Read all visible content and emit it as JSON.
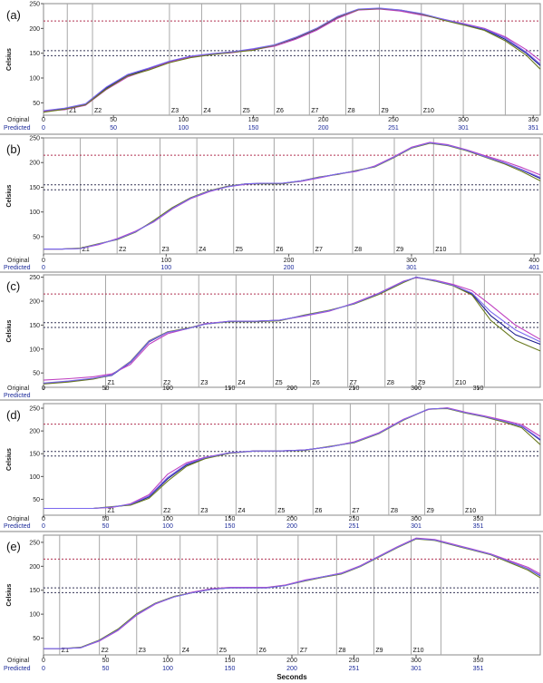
{
  "figure": {
    "xlabel": "Seconds",
    "row_labels": {
      "original": "Original",
      "predicted": "Predicted"
    },
    "colors": {
      "series": [
        "#1a1a8c",
        "#c040c0",
        "#6a7a20",
        "#7b68ee"
      ],
      "upper_ref": "#b03050",
      "lower_ref": "#333355",
      "zone": "#a8a8a8"
    }
  },
  "chart_data": [
    {
      "type": "line",
      "panel_label": "(a)",
      "ylabel": "Celsius",
      "yticks": [
        50,
        100,
        150,
        200,
        250
      ],
      "ylim": [
        25,
        250
      ],
      "xlim": [
        0,
        355
      ],
      "x_original_ticks": [
        0,
        50,
        100,
        150,
        200,
        250,
        300,
        350
      ],
      "x_predicted_ticks": [
        "0",
        "50",
        "100",
        "150",
        "200",
        "251",
        "301",
        "351"
      ],
      "reference_lines": [
        215,
        155,
        145
      ],
      "zones": [
        {
          "label": "Z1",
          "x": 17
        },
        {
          "label": "Z2",
          "x": 35
        },
        {
          "label": "Z3",
          "x": 90
        },
        {
          "label": "Z4",
          "x": 113
        },
        {
          "label": "Z5",
          "x": 141
        },
        {
          "label": "Z6",
          "x": 165
        },
        {
          "label": "Z7",
          "x": 190
        },
        {
          "label": "Z8",
          "x": 216
        },
        {
          "label": "Z9",
          "x": 240
        },
        {
          "label": "Z10",
          "x": 270
        },
        {
          "label": "",
          "x": 300
        },
        {
          "label": "",
          "x": 330
        }
      ],
      "x": [
        0,
        15,
        30,
        45,
        60,
        75,
        90,
        105,
        120,
        135,
        150,
        165,
        180,
        195,
        210,
        225,
        240,
        255,
        270,
        285,
        300,
        315,
        330,
        345,
        355
      ],
      "series": [
        {
          "values": [
            32,
            38,
            47,
            80,
            105,
            118,
            133,
            143,
            148,
            152,
            158,
            166,
            180,
            198,
            222,
            238,
            240,
            236,
            228,
            218,
            208,
            198,
            178,
            150,
            125
          ]
        },
        {
          "values": [
            33,
            36,
            45,
            77,
            102,
            117,
            132,
            142,
            148,
            151,
            157,
            164,
            178,
            196,
            220,
            237,
            239,
            235,
            227,
            219,
            210,
            200,
            183,
            157,
            135
          ]
        },
        {
          "values": [
            31,
            37,
            46,
            78,
            104,
            116,
            131,
            141,
            147,
            152,
            156,
            166,
            181,
            199,
            223,
            238,
            240,
            237,
            229,
            217,
            207,
            196,
            175,
            146,
            118
          ]
        },
        {
          "values": [
            34,
            39,
            48,
            82,
            107,
            120,
            134,
            144,
            149,
            153,
            159,
            167,
            182,
            200,
            224,
            239,
            241,
            237,
            230,
            219,
            209,
            199,
            181,
            152,
            128
          ]
        }
      ]
    },
    {
      "type": "line",
      "panel_label": "(b)",
      "ylabel": "Celsius",
      "yticks": [
        50,
        100,
        150,
        200,
        250
      ],
      "ylim": [
        15,
        250
      ],
      "xlim": [
        0,
        405
      ],
      "x_original_ticks": [
        0,
        100,
        200,
        300,
        400
      ],
      "x_predicted_ticks": [
        "0",
        "100",
        "200",
        "301",
        "401"
      ],
      "reference_lines": [
        215,
        155,
        145
      ],
      "zones": [
        {
          "label": "Z1",
          "x": 30
        },
        {
          "label": "Z2",
          "x": 60
        },
        {
          "label": "Z3",
          "x": 95
        },
        {
          "label": "Z4",
          "x": 125
        },
        {
          "label": "Z5",
          "x": 155
        },
        {
          "label": "Z6",
          "x": 188
        },
        {
          "label": "Z7",
          "x": 220
        },
        {
          "label": "Z8",
          "x": 252
        },
        {
          "label": "Z9",
          "x": 286
        },
        {
          "label": "Z10",
          "x": 318
        },
        {
          "label": "",
          "x": 340
        }
      ],
      "x": [
        0,
        15,
        30,
        45,
        60,
        75,
        90,
        105,
        120,
        135,
        150,
        165,
        180,
        195,
        210,
        225,
        240,
        255,
        270,
        285,
        300,
        315,
        330,
        345,
        360,
        375,
        390,
        405
      ],
      "series": [
        {
          "values": [
            25,
            25,
            26,
            35,
            45,
            60,
            82,
            108,
            128,
            142,
            152,
            157,
            158,
            158,
            163,
            170,
            177,
            183,
            192,
            210,
            230,
            240,
            235,
            225,
            212,
            200,
            185,
            168
          ]
        },
        {
          "values": [
            25,
            25,
            26,
            34,
            46,
            61,
            80,
            106,
            127,
            141,
            151,
            156,
            158,
            158,
            162,
            169,
            177,
            182,
            193,
            211,
            231,
            241,
            236,
            226,
            214,
            203,
            190,
            175
          ]
        },
        {
          "values": [
            25,
            25,
            27,
            36,
            44,
            59,
            83,
            109,
            129,
            143,
            152,
            157,
            157,
            157,
            163,
            171,
            176,
            184,
            191,
            209,
            229,
            239,
            234,
            224,
            211,
            198,
            182,
            163
          ]
        },
        {
          "values": [
            25,
            25,
            26,
            35,
            45,
            60,
            81,
            107,
            128,
            142,
            151,
            157,
            158,
            158,
            163,
            170,
            177,
            183,
            192,
            210,
            230,
            240,
            235,
            225,
            212,
            200,
            186,
            170
          ]
        }
      ]
    },
    {
      "type": "line",
      "panel_label": "(c)",
      "ylabel": "Celsius",
      "yticks": [
        50,
        100,
        150,
        200,
        250
      ],
      "ylim": [
        20,
        255
      ],
      "xlim": [
        0,
        400
      ],
      "x_original_ticks": [
        0,
        50,
        100,
        150,
        200,
        250,
        300,
        350
      ],
      "x_predicted_ticks": [],
      "reference_lines": [
        215,
        155,
        145
      ],
      "zones": [
        {
          "label": "Z1",
          "x": 50
        },
        {
          "label": "Z2",
          "x": 95
        },
        {
          "label": "Z3",
          "x": 125
        },
        {
          "label": "Z4",
          "x": 155
        },
        {
          "label": "Z5",
          "x": 185
        },
        {
          "label": "Z6",
          "x": 215
        },
        {
          "label": "Z7",
          "x": 245
        },
        {
          "label": "Z8",
          "x": 275
        },
        {
          "label": "Z9",
          "x": 300
        },
        {
          "label": "Z10",
          "x": 330
        },
        {
          "label": "",
          "x": 355
        }
      ],
      "x": [
        0,
        20,
        40,
        55,
        70,
        85,
        100,
        115,
        130,
        150,
        170,
        190,
        210,
        230,
        250,
        270,
        290,
        300,
        315,
        330,
        345,
        360,
        380,
        400
      ],
      "series": [
        {
          "values": [
            28,
            32,
            38,
            45,
            72,
            115,
            135,
            142,
            152,
            158,
            158,
            160,
            170,
            180,
            195,
            215,
            240,
            250,
            243,
            233,
            215,
            170,
            130,
            110
          ]
        },
        {
          "values": [
            35,
            38,
            42,
            48,
            68,
            110,
            132,
            142,
            153,
            158,
            158,
            160,
            169,
            179,
            196,
            217,
            242,
            249,
            244,
            235,
            222,
            192,
            150,
            120
          ]
        },
        {
          "values": [
            27,
            31,
            37,
            46,
            74,
            117,
            136,
            143,
            152,
            157,
            157,
            159,
            171,
            181,
            194,
            214,
            239,
            250,
            242,
            232,
            213,
            160,
            118,
            96
          ]
        },
        {
          "values": [
            29,
            33,
            39,
            46,
            73,
            116,
            135,
            142,
            152,
            158,
            158,
            160,
            170,
            180,
            195,
            216,
            241,
            250,
            243,
            233,
            217,
            178,
            140,
            115
          ]
        }
      ]
    },
    {
      "type": "line",
      "panel_label": "(d)",
      "ylabel": "Celsius",
      "yticks": [
        50,
        100,
        150,
        200,
        250
      ],
      "ylim": [
        15,
        260
      ],
      "xlim": [
        0,
        400
      ],
      "x_original_ticks": [
        0,
        50,
        100,
        150,
        200,
        250,
        300,
        350
      ],
      "x_predicted_ticks": [
        "0",
        "50",
        "100",
        "150",
        "200",
        "251",
        "301",
        "351"
      ],
      "reference_lines": [
        215,
        155,
        145
      ],
      "zones": [
        {
          "label": "Z1",
          "x": 50
        },
        {
          "label": "Z2",
          "x": 95
        },
        {
          "label": "Z3",
          "x": 125
        },
        {
          "label": "Z4",
          "x": 155
        },
        {
          "label": "Z5",
          "x": 187
        },
        {
          "label": "Z6",
          "x": 217
        },
        {
          "label": "Z7",
          "x": 247
        },
        {
          "label": "Z8",
          "x": 278
        },
        {
          "label": "Z9",
          "x": 307
        },
        {
          "label": "Z10",
          "x": 338
        },
        {
          "label": "",
          "x": 364
        }
      ],
      "x": [
        0,
        20,
        40,
        55,
        70,
        85,
        100,
        115,
        130,
        150,
        170,
        190,
        210,
        230,
        250,
        270,
        290,
        310,
        325,
        340,
        355,
        370,
        385,
        400
      ],
      "series": [
        {
          "values": [
            30,
            30,
            30,
            33,
            38,
            55,
            95,
            125,
            140,
            152,
            156,
            156,
            158,
            165,
            175,
            195,
            225,
            248,
            250,
            240,
            232,
            222,
            210,
            180
          ]
        },
        {
          "values": [
            30,
            30,
            30,
            32,
            40,
            60,
            105,
            130,
            142,
            152,
            156,
            156,
            158,
            165,
            176,
            196,
            226,
            247,
            251,
            241,
            233,
            224,
            214,
            188
          ]
        },
        {
          "values": [
            30,
            30,
            30,
            34,
            37,
            52,
            90,
            122,
            139,
            151,
            156,
            156,
            157,
            166,
            174,
            194,
            224,
            248,
            249,
            239,
            231,
            220,
            207,
            170
          ]
        },
        {
          "values": [
            30,
            30,
            30,
            33,
            39,
            57,
            98,
            127,
            141,
            152,
            156,
            156,
            158,
            165,
            175,
            195,
            225,
            248,
            250,
            240,
            232,
            222,
            211,
            182
          ]
        }
      ]
    },
    {
      "type": "line",
      "panel_label": "(e)",
      "ylabel": "Celsius",
      "yticks": [
        50,
        100,
        150,
        200,
        250
      ],
      "ylim": [
        15,
        265
      ],
      "xlim": [
        0,
        400
      ],
      "x_original_ticks": [
        0,
        50,
        100,
        150,
        200,
        250,
        300,
        350
      ],
      "x_predicted_ticks": [
        "0",
        "50",
        "100",
        "150",
        "200",
        "251",
        "301",
        "351"
      ],
      "reference_lines": [
        215,
        155,
        145
      ],
      "zones": [
        {
          "label": "Z1",
          "x": 13
        },
        {
          "label": "Z2",
          "x": 45
        },
        {
          "label": "Z3",
          "x": 75
        },
        {
          "label": "Z4",
          "x": 110
        },
        {
          "label": "Z5",
          "x": 140
        },
        {
          "label": "Z6",
          "x": 172
        },
        {
          "label": "Z7",
          "x": 205
        },
        {
          "label": "Z8",
          "x": 236
        },
        {
          "label": "Z9",
          "x": 266
        },
        {
          "label": "Z10",
          "x": 296
        },
        {
          "label": "",
          "x": 320
        }
      ],
      "x": [
        0,
        15,
        30,
        45,
        60,
        75,
        90,
        105,
        120,
        135,
        150,
        165,
        180,
        195,
        210,
        225,
        240,
        255,
        270,
        285,
        300,
        315,
        330,
        345,
        360,
        375,
        390,
        400
      ],
      "series": [
        {
          "values": [
            28,
            28,
            30,
            45,
            68,
            100,
            122,
            136,
            145,
            152,
            155,
            155,
            155,
            160,
            170,
            178,
            185,
            200,
            220,
            240,
            258,
            255,
            245,
            235,
            225,
            210,
            195,
            180
          ]
        },
        {
          "values": [
            28,
            28,
            30,
            44,
            66,
            98,
            121,
            136,
            146,
            153,
            156,
            156,
            156,
            161,
            171,
            178,
            186,
            201,
            221,
            241,
            259,
            256,
            246,
            236,
            226,
            212,
            198,
            184
          ]
        },
        {
          "values": [
            28,
            28,
            31,
            46,
            69,
            101,
            123,
            137,
            145,
            152,
            155,
            155,
            155,
            160,
            169,
            177,
            184,
            199,
            219,
            239,
            257,
            254,
            244,
            234,
            224,
            208,
            192,
            176
          ]
        },
        {
          "values": [
            28,
            28,
            30,
            45,
            67,
            99,
            122,
            136,
            145,
            152,
            155,
            155,
            155,
            160,
            170,
            178,
            185,
            200,
            220,
            240,
            258,
            255,
            245,
            235,
            225,
            210,
            195,
            181
          ]
        }
      ]
    }
  ]
}
